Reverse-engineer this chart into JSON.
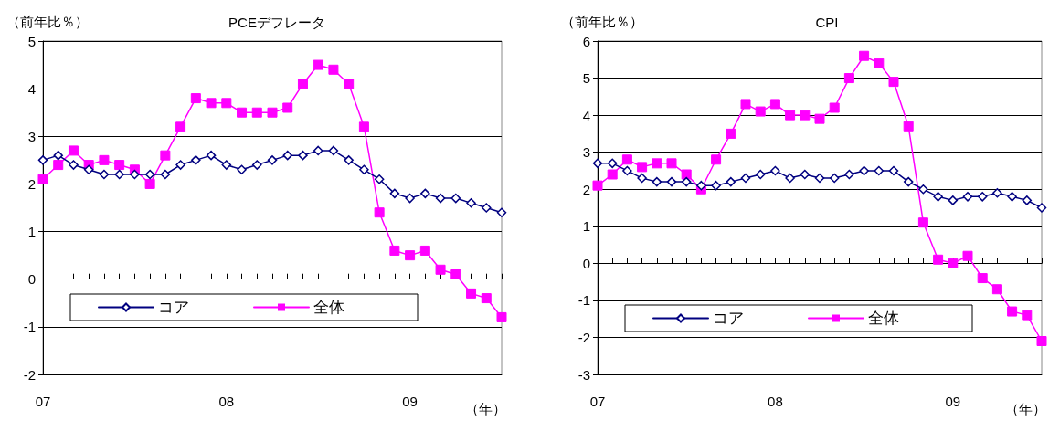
{
  "chart_data": [
    {
      "type": "line",
      "title": "PCEデフレータ",
      "ylabel": "（前年比％）",
      "xlabel": "（年）",
      "categories": [
        "07",
        null,
        null,
        null,
        null,
        null,
        null,
        null,
        null,
        null,
        null,
        null,
        "08",
        null,
        null,
        null,
        null,
        null,
        null,
        null,
        null,
        null,
        null,
        null,
        "09",
        null,
        null,
        null,
        null,
        null,
        null
      ],
      "series": [
        {
          "name": "コア",
          "color": "#000080",
          "marker": "diamond",
          "values": [
            2.5,
            2.6,
            2.4,
            2.3,
            2.2,
            2.2,
            2.2,
            2.2,
            2.2,
            2.4,
            2.5,
            2.6,
            2.4,
            2.3,
            2.4,
            2.5,
            2.6,
            2.6,
            2.7,
            2.7,
            2.5,
            2.3,
            2.1,
            1.8,
            1.7,
            1.8,
            1.7,
            1.7,
            1.6,
            1.5,
            1.4
          ]
        },
        {
          "name": "全体",
          "color": "#ff00ff",
          "marker": "square",
          "values": [
            2.1,
            2.4,
            2.7,
            2.4,
            2.5,
            2.4,
            2.3,
            2.0,
            2.6,
            3.2,
            3.8,
            3.7,
            3.7,
            3.5,
            3.5,
            3.5,
            3.6,
            4.1,
            4.5,
            4.4,
            4.1,
            3.2,
            1.4,
            0.6,
            0.5,
            0.6,
            0.2,
            0.1,
            -0.3,
            -0.4,
            -0.8
          ]
        }
      ],
      "ylim": [
        -2,
        5
      ],
      "yticks": [
        -2,
        -1,
        0,
        1,
        2,
        3,
        4,
        5
      ],
      "grid": "y",
      "legend": "bottom left"
    },
    {
      "type": "line",
      "title": "CPI",
      "ylabel": "（前年比％）",
      "xlabel": "（年）",
      "categories": [
        "07",
        null,
        null,
        null,
        null,
        null,
        null,
        null,
        null,
        null,
        null,
        null,
        "08",
        null,
        null,
        null,
        null,
        null,
        null,
        null,
        null,
        null,
        null,
        null,
        "09",
        null,
        null,
        null,
        null,
        null,
        null
      ],
      "series": [
        {
          "name": "コア",
          "color": "#000080",
          "marker": "diamond",
          "values": [
            2.7,
            2.7,
            2.5,
            2.3,
            2.2,
            2.2,
            2.2,
            2.1,
            2.1,
            2.2,
            2.3,
            2.4,
            2.5,
            2.3,
            2.4,
            2.3,
            2.3,
            2.4,
            2.5,
            2.5,
            2.5,
            2.2,
            2.0,
            1.8,
            1.7,
            1.8,
            1.8,
            1.9,
            1.8,
            1.7,
            1.5
          ]
        },
        {
          "name": "全体",
          "color": "#ff00ff",
          "marker": "square",
          "values": [
            2.1,
            2.4,
            2.8,
            2.6,
            2.7,
            2.7,
            2.4,
            2.0,
            2.8,
            3.5,
            4.3,
            4.1,
            4.3,
            4.0,
            4.0,
            3.9,
            4.2,
            5.0,
            5.6,
            5.4,
            4.9,
            3.7,
            1.1,
            0.1,
            0.0,
            0.2,
            -0.4,
            -0.7,
            -1.3,
            -1.4,
            -2.1
          ]
        }
      ],
      "ylim": [
        -3,
        6
      ],
      "yticks": [
        -3,
        -2,
        -1,
        0,
        1,
        2,
        3,
        4,
        5,
        6
      ],
      "grid": "y",
      "legend": "bottom left"
    }
  ]
}
